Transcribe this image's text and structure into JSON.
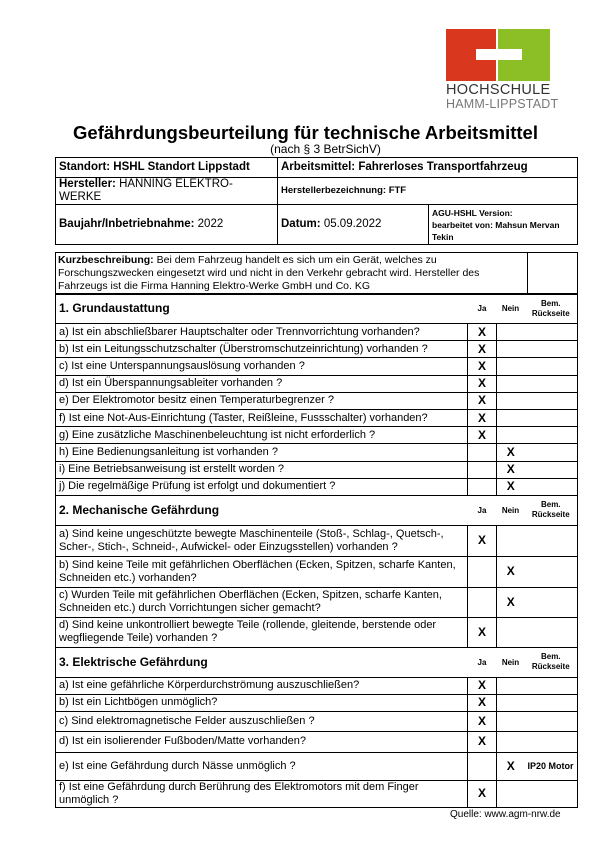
{
  "logo": {
    "line1": "HOCHSCHULE",
    "line2": "HAMM-LIPPSTADT",
    "colors": {
      "red": "#d9381e",
      "green": "#8cbf26"
    }
  },
  "title": "Gefährdungsbeurteilung für technische Arbeitsmittel",
  "subtitle": "(nach § 3 BetrSichV)",
  "header": {
    "standort": "Standort: HSHL Standort Lippstadt",
    "arbeitsmittel": "Arbeitsmittel: Fahrerloses Transportfahrzeug",
    "hersteller_label": "Hersteller:",
    "hersteller_value": " HANNING ELEKTRO-WERKE",
    "herstellerbezeichnung": "Herstellerbezeichnung: FTF",
    "baujahr_label": "Baujahr/Inbetriebnahme:",
    "baujahr_value": " 2022",
    "datum_label": "Datum:",
    "datum_value": " 05.09.2022",
    "version": "AGU-HSHL Version:",
    "bearbeitet": "bearbeitet von: Mahsun Mervan Tekin"
  },
  "kurz": {
    "label": "Kurzbeschreibung:",
    "text": " Bei dem Fahrzeug handelt es sich um ein Gerät, welches zu Forschungszwecken eingesetzt wird und nicht in den Verkehr gebracht wird. Hersteller des Fahrzeugs ist die Firma Hanning Elektro-Werke GmbH und Co. KG"
  },
  "columns": {
    "ja": "Ja",
    "nein": "Nein",
    "bem1": "Bem.",
    "bem2": "Rückseite"
  },
  "sections": [
    {
      "title": "1. Grundaustattung",
      "items": [
        {
          "q": "a) Ist ein abschließbarer Hauptschalter oder Trennvorrichtung vorhanden?",
          "ja": "X",
          "nein": "",
          "bem": ""
        },
        {
          "q": "b) Ist ein Leitungsschutzschalter (Überstromschutzeinrichtung) vorhanden ?",
          "ja": "X",
          "nein": "",
          "bem": ""
        },
        {
          "q": "c) Ist eine Unterspannungsauslösung vorhanden ?",
          "ja": "X",
          "nein": "",
          "bem": ""
        },
        {
          "q": "d) Ist ein Überspannungsableiter vorhanden ?",
          "ja": "X",
          "nein": "",
          "bem": ""
        },
        {
          "q": "e) Der Elektromotor besitz einen Temperaturbegrenzer ?",
          "ja": "X",
          "nein": "",
          "bem": ""
        },
        {
          "q": "f) Ist eine Not-Aus-Einrichtung (Taster, Reißleine, Fussschalter) vorhanden?",
          "ja": "X",
          "nein": "",
          "bem": ""
        },
        {
          "q": "g) Eine zusätzliche Maschinenbeleuchtung ist nicht erforderlich ?",
          "ja": "X",
          "nein": "",
          "bem": ""
        },
        {
          "q": "h) Eine Bedienungsanleitung ist vorhanden ?",
          "ja": "",
          "nein": "X",
          "bem": ""
        },
        {
          "q": "i) Eine Betriebsanweisung ist erstellt worden ?",
          "ja": "",
          "nein": "X",
          "bem": ""
        },
        {
          "q": "j) Die regelmäßige Prüfung ist erfolgt und dokumentiert ?",
          "ja": "",
          "nein": "X",
          "bem": ""
        }
      ]
    },
    {
      "title": "2. Mechanische Gefährdung",
      "items": [
        {
          "q": "a) Sind keine ungeschützte bewegte Maschinenteile (Stoß-, Schlag-, Quetsch-, Scher-, Stich-, Schneid-, Aufwickel- oder Einzugsstellen) vorhanden ?",
          "ja": "X",
          "nein": "",
          "bem": ""
        },
        {
          "q": "b) Sind keine Teile mit gefährlichen Oberflächen (Ecken, Spitzen, scharfe Kanten, Schneiden etc.) vorhanden?",
          "ja": "",
          "nein": "X",
          "bem": ""
        },
        {
          "q": "c) Wurden Teile mit gefährlichen Oberflächen (Ecken, Spitzen, scharfe Kanten, Schneiden etc.) durch Vorrichtungen sicher gemacht?",
          "ja": "",
          "nein": "X",
          "bem": ""
        },
        {
          "q": "d) Sind keine unkontrolliert bewegte Teile (rollende, gleitende, berstende oder wegfliegende Teile) vorhanden ?",
          "ja": "X",
          "nein": "",
          "bem": ""
        }
      ]
    },
    {
      "title": "3. Elektrische Gefährdung",
      "items": [
        {
          "q": "a) Ist eine gefährliche Körperdurchströmung auszuschließen?",
          "ja": "X",
          "nein": "",
          "bem": ""
        },
        {
          "q": "b) Ist ein Lichtbögen unmöglich?",
          "ja": "X",
          "nein": "",
          "bem": ""
        },
        {
          "q": "c) Sind elektromagnetische Felder auszuschließen ?",
          "ja": "X",
          "nein": "",
          "bem": ""
        },
        {
          "q": "d) Ist ein isolierender Fußboden/Matte vorhanden?",
          "ja": "X",
          "nein": "",
          "bem": ""
        },
        {
          "q": "e) Ist eine Gefährdung durch Nässe unmöglich ?",
          "ja": "",
          "nein": "X",
          "bem": "IP20 Motor"
        },
        {
          "q": "f) Ist eine Gefährdung durch Berührung des Elektromotors mit dem Finger unmöglich ?",
          "ja": "X",
          "nein": "",
          "bem": ""
        }
      ]
    }
  ],
  "source": "Quelle: www.agm-nrw.de"
}
